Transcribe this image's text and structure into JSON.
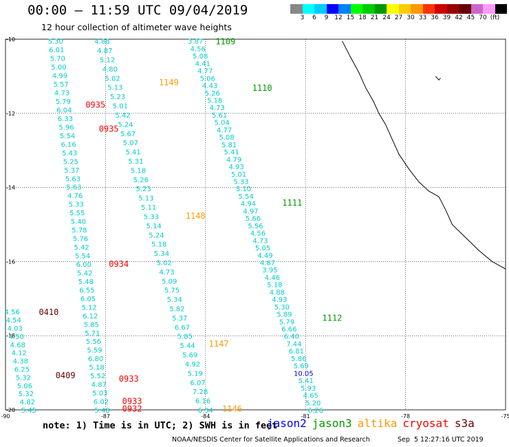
{
  "title": "00:00 – 11:59 UTC 09/04/2019",
  "subtitle": "12 hour collection of altimeter wave heights",
  "colorbar": {
    "colors": [
      "#888888",
      "#00ffff",
      "#00ccff",
      "#0000ff",
      "#0080ff",
      "#00ff00",
      "#00cc00",
      "#009900",
      "#ffff00",
      "#ffcc00",
      "#ff9900",
      "#ff3300",
      "#cc0000",
      "#990000",
      "#660000",
      "#cc66cc",
      "#ff99ff",
      "#000000"
    ],
    "labels": [
      "3",
      "6",
      "9",
      "12",
      "15",
      "18",
      "21",
      "24",
      "27",
      "30",
      "33",
      "36",
      "39",
      "42",
      "45",
      "70",
      "(ft)"
    ]
  },
  "map": {
    "lon_ticks": [
      "-90",
      "-87",
      "-84",
      "-81",
      "-78",
      "-75"
    ],
    "lat_ticks": [
      "-10",
      "-12",
      "-14",
      "-16",
      "-18",
      "-20"
    ],
    "lon_range": [
      -90,
      -75
    ],
    "lat_range": [
      -20,
      -10
    ],
    "grid": true,
    "land": "western coast of South America (Peru/Chile) drawn as black coastline in upper right"
  },
  "tracks": [
    {
      "satellite": "jason3",
      "pass_label": "1109",
      "color": "#009900",
      "label_pos": [
        -83.7,
        -10.05
      ],
      "start": [
        -84.3,
        -10.05
      ],
      "end": [
        -80.7,
        -20.0
      ],
      "values": [
        "3.87",
        "4.56",
        "5.08",
        "4.41",
        "4.77",
        "5.06",
        "4.43",
        "5.26",
        "5.18",
        "4.73",
        "5.61",
        "5.04",
        "4.77",
        "5.08",
        "5.81",
        "5.41",
        "4.79",
        "4.93",
        "5.01",
        "5.33",
        "5.10",
        "5.54",
        "4.94",
        "4.97",
        "5.66",
        "5.56",
        "4.56",
        "4.73",
        "5.05",
        "4.49",
        "4.87",
        "3.95",
        "4.46",
        "5.18",
        "4.88",
        "4.93",
        "5.30",
        "5.89",
        "5.79",
        "6.66",
        "6.40",
        "7.44",
        "6.81",
        "5.86",
        "5.69",
        "10.05",
        "5.41",
        "5.93",
        "4.65",
        "5.20",
        "6.26"
      ]
    },
    {
      "satellite": "jason3",
      "pass_label": "1110",
      "color": "#009900",
      "label_pos": [
        -82.6,
        -11.3
      ]
    },
    {
      "satellite": "jason3",
      "pass_label": "1111",
      "color": "#009900",
      "label_pos": [
        -81.7,
        -14.4
      ]
    },
    {
      "satellite": "jason3",
      "pass_label": "1112",
      "color": "#009900",
      "label_pos": [
        -80.5,
        -17.5
      ]
    },
    {
      "satellite": "altika",
      "pass_label": "1149",
      "color": "#ff9900",
      "label_pos": [
        -85.4,
        -11.15
      ],
      "start": [
        -87.1,
        -10.05
      ],
      "end": [
        -84.0,
        -20.0
      ],
      "values": [
        "4.88",
        "4.87",
        "5.12",
        "4.80",
        "5.02",
        "5.13",
        "5.23",
        "5.01",
        "5.42",
        "5.24",
        "5.67",
        "5.07",
        "5.41",
        "5.31",
        "5.18",
        "5.26",
        "5.23",
        "5.13",
        "5.11",
        "5.33",
        "5.14",
        "5.24",
        "5.18",
        "5.34",
        "5.02",
        "4.73",
        "5.09",
        "5.75",
        "5.34",
        "5.82",
        "5.37",
        "6.67",
        "5.85",
        "5.44",
        "5.69",
        "4.92",
        "5.19",
        "6.07",
        "7.28",
        "6.16",
        "6.34"
      ]
    },
    {
      "satellite": "altika",
      "pass_label": "1148",
      "color": "#ff9900",
      "label_pos": [
        -84.6,
        -14.75
      ]
    },
    {
      "satellite": "altika",
      "pass_label": "1147",
      "color": "#ff9900",
      "label_pos": [
        -83.9,
        -18.2
      ]
    },
    {
      "satellite": "altika",
      "pass_label": "1146",
      "color": "#ff9900",
      "label_pos": [
        -83.5,
        -19.95
      ]
    },
    {
      "satellite": "cryosat",
      "pass_label": "0935",
      "color": "#ff0000",
      "label_pos": [
        -87.6,
        -11.75
      ],
      "start": [
        -88.5,
        -10.05
      ],
      "end": [
        -87.1,
        -20.0
      ],
      "values": [
        "5.30",
        "6.01",
        "5.70",
        "5.00",
        "4.99",
        "5.57",
        "4.73",
        "5.79",
        "6.04",
        "6.33",
        "5.96",
        "5.54",
        "6.16",
        "5.43",
        "5.25",
        "5.37",
        "5.63",
        "5.63",
        "4.76",
        "5.33",
        "5.55",
        "5.40",
        "5.78",
        "5.76",
        "5.42",
        "5.54",
        "6.00",
        "5.42",
        "5.48",
        "6.55",
        "6.05",
        "5.12",
        "6.12",
        "5.85",
        "5.71",
        "5.56",
        "5.59",
        "6.80",
        "5.18",
        "5.52",
        "4.87",
        "5.03",
        "6.02",
        "5.48"
      ]
    },
    {
      "satellite": "cryosat",
      "pass_label": "0935",
      "color": "#ff0000",
      "label_pos": [
        -87.2,
        -12.4
      ]
    },
    {
      "satellite": "cryosat",
      "pass_label": "0934",
      "color": "#ff0000",
      "label_pos": [
        -86.9,
        -16.05
      ]
    },
    {
      "satellite": "cryosat",
      "pass_label": "0933",
      "color": "#ff0000",
      "label_pos": [
        -86.6,
        -19.15
      ]
    },
    {
      "satellite": "cryosat",
      "pass_label": "0933",
      "color": "#ff0000",
      "label_pos": [
        -86.5,
        -19.75
      ]
    },
    {
      "satellite": "cryosat",
      "pass_label": "0932",
      "color": "#ff0000",
      "label_pos": [
        -86.5,
        -19.95
      ]
    },
    {
      "satellite": "s3a",
      "pass_label": "0410",
      "color": "#660000",
      "label_pos": [
        -89.0,
        -17.35
      ],
      "start": [
        -89.8,
        -17.35
      ],
      "end": [
        -89.3,
        -20.0
      ],
      "values": [
        "4.56",
        "4.54",
        "4.03",
        "4.50",
        "4.68",
        "4.12",
        "4.38",
        "6.25",
        "5.32",
        "5.06",
        "5.32",
        "4.82",
        "5.45"
      ]
    },
    {
      "satellite": "s3a",
      "pass_label": "0409",
      "color": "#660000",
      "label_pos": [
        -88.5,
        -19.05
      ]
    }
  ],
  "footnote": "note: 1) Time is in UTC; 2) SWH is in feet",
  "legend": [
    {
      "name": "jason2",
      "color": "#0000ff"
    },
    {
      "name": "jason3",
      "color": "#009900"
    },
    {
      "name": "altika",
      "color": "#ff9900"
    },
    {
      "name": "cryosat",
      "color": "#ff0000"
    },
    {
      "name": "s3a",
      "color": "#660000"
    }
  ],
  "credits": "NOAA/NESDIS Center for Satellite Applications and Research",
  "timestamp": "Sep  5 12:27:16 UTC 2019"
}
